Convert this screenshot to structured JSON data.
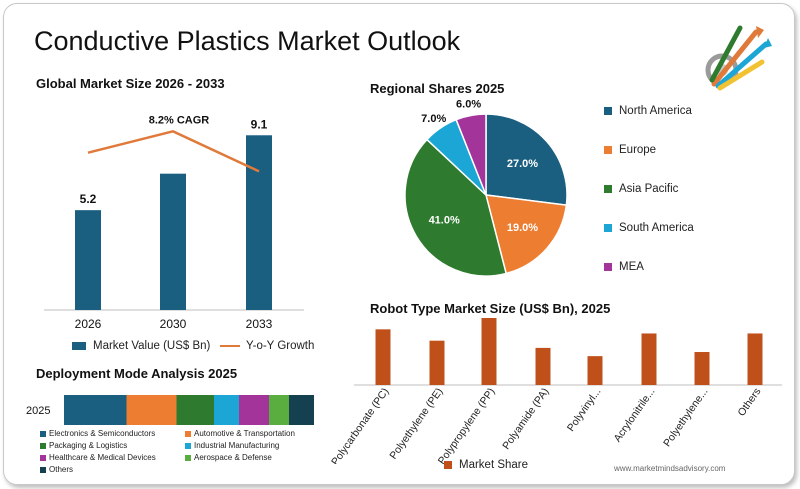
{
  "page": {
    "title": "Conductive Plastics Market Outlook",
    "watermark": "www.marketmindsadvisory.com"
  },
  "chart_data": [
    {
      "type": "bar",
      "title": "Global Market Size 2026 - 2033",
      "categories": [
        "2026",
        "2030",
        "2033"
      ],
      "series": [
        {
          "name": "Market Value (US$ Bn)",
          "values": [
            5.2,
            7.1,
            9.1
          ],
          "data_labels": [
            "5.2",
            "",
            "9.1"
          ],
          "color": "#1a5e80"
        }
      ],
      "line_series": {
        "name": "Y-o-Y Growth",
        "values": [
          8.1,
          8.9,
          7.4
        ],
        "color": "#e07a3a"
      },
      "annotation": "8.2% CAGR",
      "ylim": [
        0,
        10
      ]
    },
    {
      "type": "pie",
      "title": "Regional Shares 2025",
      "labels": [
        "North America",
        "Europe",
        "Asia Pacific",
        "South America",
        "MEA"
      ],
      "values": [
        27.0,
        19.0,
        41.0,
        7.0,
        6.0
      ],
      "value_labels": [
        "27.0%",
        "19.0%",
        "41.0%",
        "7.0%",
        "6.0%"
      ],
      "colors": [
        "#1a5e80",
        "#ed7d31",
        "#2e7a2e",
        "#1ba6d6",
        "#a3359a"
      ],
      "legend": "right"
    },
    {
      "type": "bar",
      "title": "Robot Type Market Size (US$ Bn), 2025",
      "categories": [
        "Polycarbonate (PC)",
        "Polyethylene (PE)",
        "Polypropylene (PP)",
        "Polyamide (PA)",
        "Polyvinyl...",
        "Acrylonitrile...",
        "Polyethylene...",
        "Others"
      ],
      "series": [
        {
          "name": "Market Share",
          "values": [
            5.4,
            4.3,
            6.5,
            3.6,
            2.8,
            5.0,
            3.2,
            5.0
          ],
          "color": "#c0501a"
        }
      ],
      "ylim": [
        0,
        6.5
      ],
      "legend": "bottom"
    },
    {
      "type": "bar",
      "orientation": "horizontal-stacked",
      "title": "Deployment Mode Analysis 2025",
      "categories": [
        "2025"
      ],
      "series": [
        {
          "name": "Electronics & Semiconductors",
          "values": [
            25
          ],
          "color": "#1a5e80"
        },
        {
          "name": "Automotive & Transportation",
          "values": [
            20
          ],
          "color": "#ed7d31"
        },
        {
          "name": "Packaging & Logistics",
          "values": [
            15
          ],
          "color": "#2e7a2e"
        },
        {
          "name": "Industrial Manufacturing",
          "values": [
            10
          ],
          "color": "#1ba6d6"
        },
        {
          "name": "Healthcare & Medical Devices",
          "values": [
            12
          ],
          "color": "#a3359a"
        },
        {
          "name": "Aerospace & Defense",
          "values": [
            8
          ],
          "color": "#5aad3f"
        },
        {
          "name": "Others",
          "values": [
            10
          ],
          "color": "#14404f"
        }
      ]
    }
  ]
}
